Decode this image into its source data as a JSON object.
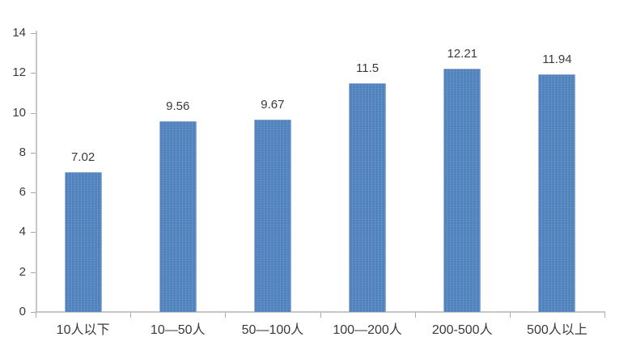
{
  "chart_data": {
    "type": "bar",
    "title": "",
    "xlabel": "",
    "ylabel": "",
    "categories": [
      "10人以下",
      "10—50人",
      "50—100人",
      "100—200人",
      "200-500人",
      "500人以上"
    ],
    "values": [
      7.02,
      9.56,
      9.67,
      11.5,
      12.21,
      11.94
    ],
    "value_labels": [
      "7.02",
      "9.56",
      "9.67",
      "11.5",
      "12.21",
      "11.94"
    ],
    "ylim": [
      0,
      14
    ],
    "yticks": [
      0,
      2,
      4,
      6,
      8,
      10,
      12,
      14
    ],
    "grid": false,
    "legend": null,
    "colors": {
      "bar": "#4f81bd",
      "axis_line": "#c6c6c6",
      "tick_mark": "#a8a8a8",
      "tick_text": "#3a3a3a",
      "value_text": "#3a3a3a"
    }
  }
}
